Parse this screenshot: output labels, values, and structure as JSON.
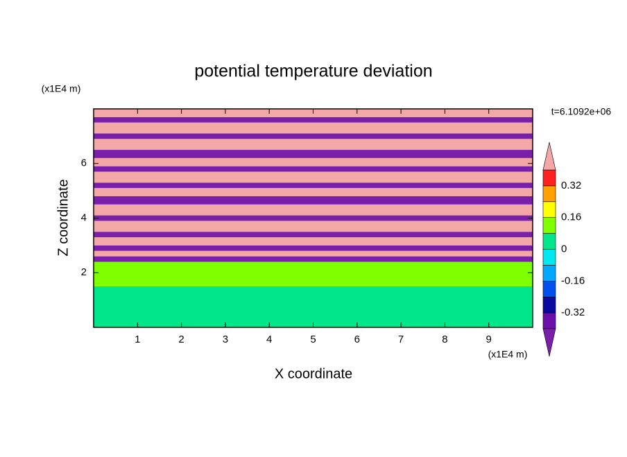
{
  "chart_data": {
    "type": "contour",
    "title": "potential temperature deviation",
    "xlabel": "X coordinate",
    "ylabel": "Z coordinate",
    "x_unit": "(x1E4 m)",
    "y_unit": "(x1E4 m)",
    "annotation": "t=6.1092e+06",
    "xlim": [
      0,
      10
    ],
    "ylim": [
      0,
      8
    ],
    "xticks": [
      1,
      2,
      3,
      4,
      5,
      6,
      7,
      8,
      9
    ],
    "yticks": [
      2,
      4,
      6
    ],
    "band_edges": [
      0,
      1.5,
      2.4,
      2.6,
      2.8,
      3.0,
      3.3,
      3.5,
      3.9,
      4.1,
      4.5,
      4.8,
      5.1,
      5.3,
      5.7,
      5.9,
      6.2,
      6.5,
      6.9,
      7.1,
      7.5,
      7.7,
      8
    ],
    "band_values": [
      0.04,
      0.1,
      -0.45,
      0.45,
      -0.45,
      0.45,
      -0.45,
      0.45,
      -0.45,
      0.45,
      -0.45,
      0.45,
      -0.45,
      0.45,
      -0.45,
      0.45,
      -0.45,
      0.45,
      -0.45,
      0.45,
      -0.45,
      0.45
    ],
    "colorbar": {
      "levels": [
        -0.4,
        -0.32,
        -0.24,
        -0.16,
        -0.08,
        0,
        0.08,
        0.16,
        0.24,
        0.32,
        0.4
      ],
      "colors": [
        "#6a10a8",
        "#0a0aa0",
        "#0050f0",
        "#00a8ff",
        "#00e8f0",
        "#00e68a",
        "#80ff00",
        "#ffff00",
        "#ffa000",
        "#ff2020"
      ],
      "under_color": "#7a1faa",
      "over_color": "#f4a7a7",
      "ticks": [
        -0.32,
        -0.16,
        0,
        0.16,
        0.32
      ]
    }
  }
}
